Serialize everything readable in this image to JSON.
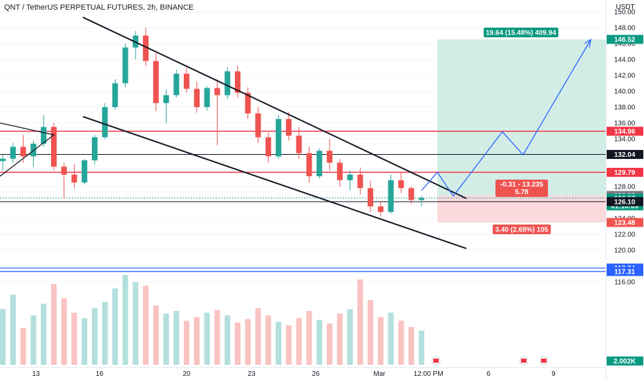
{
  "header": {
    "title": "QNT / TetherUS PERPETUAL FUTURES, 2h, BINANCE",
    "currency": "USDT"
  },
  "colors": {
    "up": "#26a69a",
    "down": "#ef5350",
    "resistance": "#f23645",
    "level_line": "#131722",
    "blue_line": "#2962ff",
    "projection": "#2962ff",
    "target_zone": "#d1ede6",
    "stop_zone": "#fbd9dc"
  },
  "chart_data": {
    "type": "candlestick",
    "title": "QNT / TetherUS PERPETUAL FUTURES, 2h, BINANCE",
    "ylim": [
      115.5,
      151.5
    ],
    "y_ticks": [
      116.0,
      118.0,
      120.0,
      122.0,
      124.0,
      126.0,
      128.0,
      130.0,
      132.0,
      134.0,
      136.0,
      138.0,
      140.0,
      142.0,
      144.0,
      146.0,
      148.0,
      150.0
    ],
    "x_ticks": [
      "13",
      "16",
      "20",
      "23",
      "26",
      "Mar",
      "12:00 PM",
      "6",
      "9"
    ],
    "x_tick_index": [
      52,
      144,
      270,
      364,
      457,
      549,
      620,
      707,
      801
    ],
    "price_levels": [
      {
        "label": "146.52",
        "value": 146.52,
        "kind": "target"
      },
      {
        "label": "134.96",
        "value": 134.96,
        "kind": "resistance"
      },
      {
        "label": "132.04",
        "value": 132.04,
        "kind": "level"
      },
      {
        "label": "129.79",
        "value": 129.79,
        "kind": "resistance"
      },
      {
        "label": "126.88",
        "value": 126.88,
        "kind": "entry"
      },
      {
        "label": "126.57",
        "value": 126.57,
        "kind": "last",
        "countdown": "01:10:09"
      },
      {
        "label": "126.10",
        "value": 126.1,
        "kind": "level"
      },
      {
        "label": "123.48",
        "value": 123.48,
        "kind": "stop"
      },
      {
        "label": "117.74",
        "value": 117.74,
        "kind": "blue"
      },
      {
        "label": "117.31",
        "value": 117.31,
        "kind": "blue"
      }
    ],
    "volume_label": "2.002K",
    "annotations": {
      "target": "19.64 (15.48%) 409.94",
      "stop": "3.40 (2.68%) 105",
      "center_line1": "-0.31 - 13.235",
      "center_line2": "5.78"
    },
    "channel": {
      "upper": [
        [
          0.0,
          149.3
        ],
        [
          1.0,
          126.5
        ]
      ],
      "lower": [
        [
          0.0,
          136.8
        ],
        [
          1.0,
          120.2
        ]
      ]
    },
    "projection_path": [
      127.5,
      129.8,
      126.8,
      134.9,
      132.0,
      146.5
    ],
    "candles": [
      [
        131.2,
        132.0,
        130.0,
        131.5
      ],
      [
        131.5,
        133.5,
        131.0,
        133.0
      ],
      [
        133.0,
        134.5,
        131.0,
        131.8
      ],
      [
        131.8,
        133.8,
        130.5,
        133.4
      ],
      [
        133.4,
        137.0,
        133.0,
        135.5
      ],
      [
        135.5,
        136.0,
        130.0,
        130.5
      ],
      [
        130.5,
        131.0,
        126.5,
        129.5
      ],
      [
        129.5,
        130.8,
        127.8,
        128.5
      ],
      [
        128.5,
        131.5,
        128.3,
        131.3
      ],
      [
        131.3,
        134.5,
        130.8,
        134.2
      ],
      [
        134.2,
        138.5,
        134.0,
        138.0
      ],
      [
        138.0,
        141.5,
        137.7,
        141.0
      ],
      [
        141.0,
        146.0,
        140.5,
        145.5
      ],
      [
        145.5,
        147.6,
        144.0,
        147.0
      ],
      [
        147.0,
        148.0,
        143.2,
        143.8
      ],
      [
        143.8,
        144.8,
        137.5,
        138.5
      ],
      [
        138.5,
        140.2,
        136.0,
        139.5
      ],
      [
        139.5,
        142.7,
        139.2,
        142.2
      ],
      [
        142.2,
        143.0,
        139.8,
        140.3
      ],
      [
        140.3,
        141.2,
        137.3,
        138.0
      ],
      [
        138.0,
        140.6,
        137.6,
        140.4
      ],
      [
        140.4,
        141.5,
        133.2,
        139.5
      ],
      [
        139.5,
        143.0,
        139.0,
        142.5
      ],
      [
        142.5,
        143.2,
        139.2,
        139.8
      ],
      [
        139.8,
        140.5,
        136.5,
        137.2
      ],
      [
        137.2,
        138.0,
        133.5,
        134.2
      ],
      [
        134.2,
        134.8,
        131.0,
        131.8
      ],
      [
        131.8,
        137.0,
        131.5,
        136.5
      ],
      [
        136.5,
        137.4,
        133.8,
        134.4
      ],
      [
        134.4,
        135.5,
        131.5,
        132.2
      ],
      [
        132.2,
        133.0,
        128.5,
        129.3
      ],
      [
        129.3,
        132.8,
        129.0,
        132.5
      ],
      [
        132.5,
        134.0,
        130.0,
        131.0
      ],
      [
        131.0,
        131.5,
        128.0,
        128.8
      ],
      [
        128.8,
        130.0,
        127.5,
        129.5
      ],
      [
        129.5,
        130.4,
        127.0,
        127.8
      ],
      [
        127.8,
        128.8,
        124.8,
        125.5
      ],
      [
        125.5,
        126.2,
        124.2,
        124.8
      ],
      [
        124.8,
        129.5,
        124.6,
        128.8
      ],
      [
        128.8,
        129.8,
        127.2,
        127.8
      ],
      [
        127.8,
        128.0,
        125.8,
        126.3
      ],
      [
        126.3,
        126.8,
        125.5,
        126.57
      ]
    ],
    "volumes": [
      0.62,
      0.78,
      0.41,
      0.55,
      0.68,
      0.9,
      0.74,
      0.58,
      0.52,
      0.63,
      0.7,
      0.85,
      1.0,
      0.92,
      0.88,
      0.66,
      0.57,
      0.6,
      0.49,
      0.53,
      0.58,
      0.61,
      0.55,
      0.47,
      0.51,
      0.63,
      0.55,
      0.48,
      0.44,
      0.52,
      0.6,
      0.5,
      0.46,
      0.57,
      0.62,
      0.95,
      0.72,
      0.53,
      0.58,
      0.49,
      0.42,
      0.38
    ]
  }
}
